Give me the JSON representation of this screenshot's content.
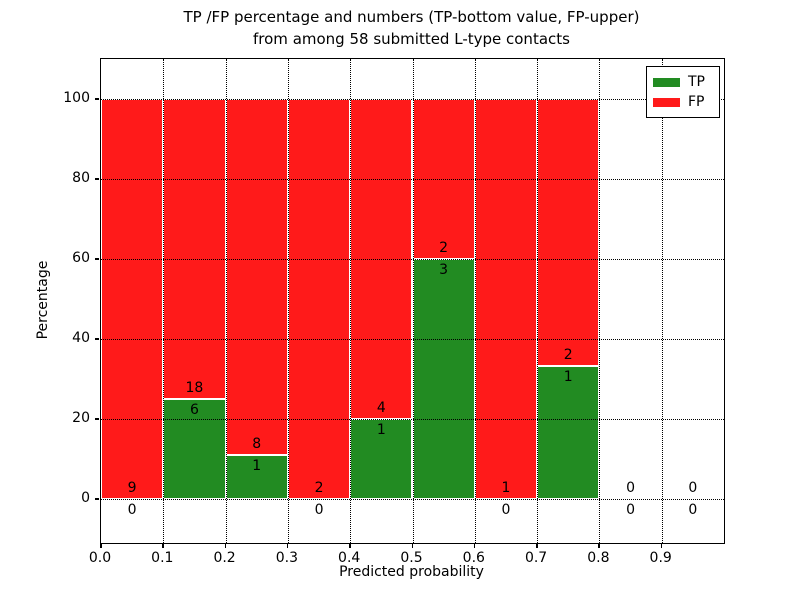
{
  "title": {
    "line1": "TP /FP percentage and numbers (TP-bottom value, FP-upper)",
    "line2": "from among 58 submitted L-type contacts"
  },
  "chart_data": {
    "type": "bar",
    "stacked": true,
    "title": "TP /FP percentage and numbers (TP-bottom value, FP-upper) from among 58 submitted L-type contacts",
    "xlabel": "Predicted probability",
    "ylabel": "Percentage",
    "total_contacts": 58,
    "bins": [
      {
        "range": [
          0.0,
          0.1
        ],
        "tp_count": 0,
        "fp_count": 9,
        "tp_pct": 0,
        "fp_pct": 100,
        "has_bar": true
      },
      {
        "range": [
          0.1,
          0.2
        ],
        "tp_count": 6,
        "fp_count": 18,
        "tp_pct": 25,
        "fp_pct": 75,
        "has_bar": true
      },
      {
        "range": [
          0.2,
          0.3
        ],
        "tp_count": 1,
        "fp_count": 8,
        "tp_pct": 11.11,
        "fp_pct": 88.89,
        "has_bar": true
      },
      {
        "range": [
          0.3,
          0.4
        ],
        "tp_count": 0,
        "fp_count": 2,
        "tp_pct": 0,
        "fp_pct": 100,
        "has_bar": true
      },
      {
        "range": [
          0.4,
          0.5
        ],
        "tp_count": 1,
        "fp_count": 4,
        "tp_pct": 20,
        "fp_pct": 80,
        "has_bar": true
      },
      {
        "range": [
          0.5,
          0.6
        ],
        "tp_count": 3,
        "fp_count": 2,
        "tp_pct": 60,
        "fp_pct": 40,
        "has_bar": true
      },
      {
        "range": [
          0.6,
          0.7
        ],
        "tp_count": 0,
        "fp_count": 1,
        "tp_pct": 0,
        "fp_pct": 100,
        "has_bar": true
      },
      {
        "range": [
          0.7,
          0.8
        ],
        "tp_count": 1,
        "fp_count": 2,
        "tp_pct": 33.33,
        "fp_pct": 66.67,
        "has_bar": true
      },
      {
        "range": [
          0.8,
          0.9
        ],
        "tp_count": 0,
        "fp_count": 0,
        "tp_pct": 0,
        "fp_pct": 0,
        "has_bar": false
      },
      {
        "range": [
          0.9,
          1.0
        ],
        "tp_count": 0,
        "fp_count": 0,
        "tp_pct": 0,
        "fp_pct": 0,
        "has_bar": false
      }
    ],
    "x_ticks": [
      0.0,
      0.1,
      0.2,
      0.3,
      0.4,
      0.5,
      0.6,
      0.7,
      0.8,
      0.9
    ],
    "x_tick_labels": [
      "0.0",
      "0.1",
      "0.2",
      "0.3",
      "0.4",
      "0.5",
      "0.6",
      "0.7",
      "0.8",
      "0.9"
    ],
    "y_ticks": [
      0,
      20,
      40,
      60,
      80,
      100
    ],
    "y_tick_labels": [
      "0",
      "20",
      "40",
      "60",
      "80",
      "100"
    ],
    "xlim": [
      0.0,
      1.0
    ],
    "ylim": [
      -11,
      110
    ],
    "grid": "dotted, drawn over bars",
    "legend": {
      "position": "upper-right",
      "entries": [
        {
          "label": "TP",
          "color": "#228b22"
        },
        {
          "label": "FP",
          "color": "#ff1a1a"
        }
      ]
    }
  },
  "colors": {
    "tp_green": "#228b22",
    "fp_red": "#ff1a1a",
    "background": "#ffffff",
    "axis": "#000000"
  }
}
